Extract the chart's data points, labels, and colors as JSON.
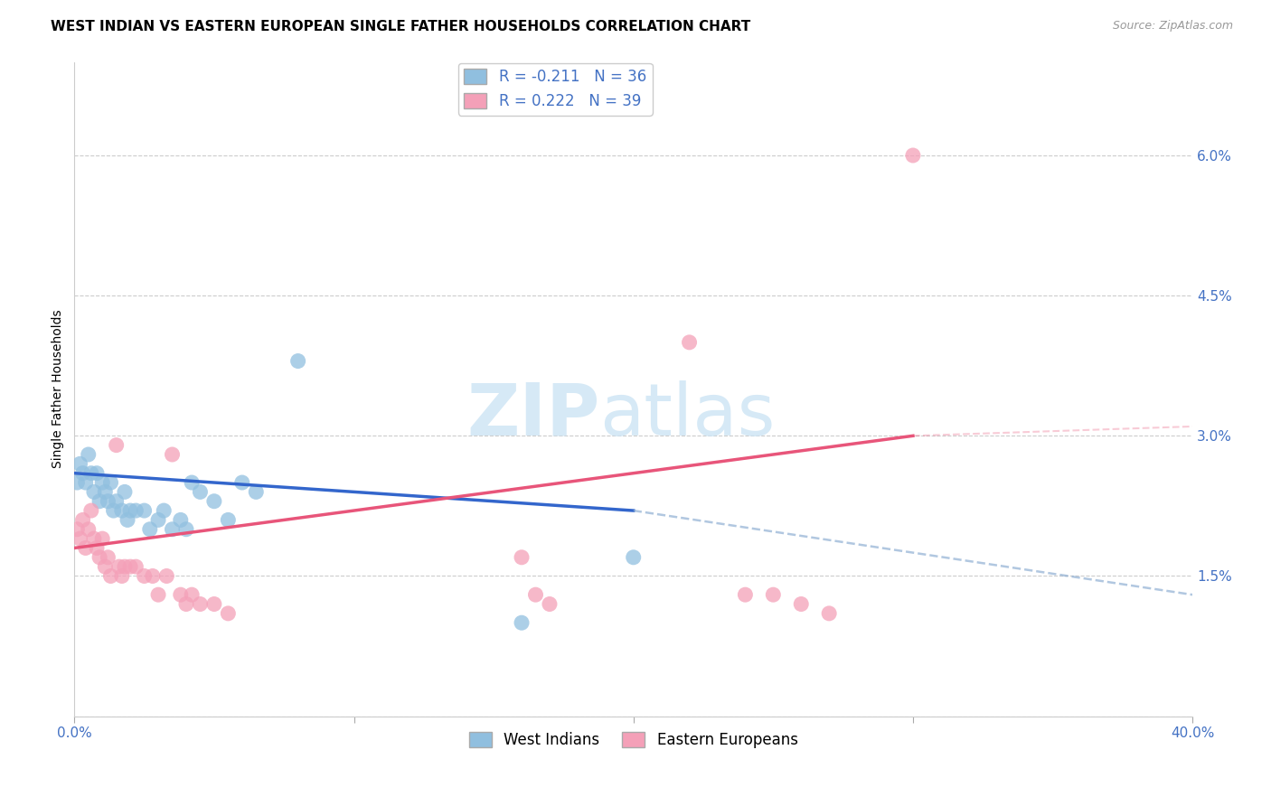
{
  "title": "WEST INDIAN VS EASTERN EUROPEAN SINGLE FATHER HOUSEHOLDS CORRELATION CHART",
  "source": "Source: ZipAtlas.com",
  "tick_color": "#4472c4",
  "ylabel": "Single Father Households",
  "xlim": [
    0.0,
    0.4
  ],
  "ylim": [
    0.0,
    0.07
  ],
  "x_ticks": [
    0.0,
    0.1,
    0.2,
    0.3,
    0.4
  ],
  "x_tick_labels": [
    "0.0%",
    "",
    "",
    "",
    "40.0%"
  ],
  "y_ticks": [
    0.0,
    0.015,
    0.03,
    0.045,
    0.06
  ],
  "y_tick_labels": [
    "",
    "1.5%",
    "3.0%",
    "4.5%",
    "6.0%"
  ],
  "blue_R": "-0.211",
  "blue_N": "36",
  "pink_R": "0.222",
  "pink_N": "39",
  "blue_color": "#90bfdf",
  "pink_color": "#f4a0b8",
  "blue_line_color": "#3366cc",
  "pink_line_color": "#e8557a",
  "blue_line_dash_color": "#88aad0",
  "watermark_zip": "ZIP",
  "watermark_atlas": "atlas",
  "legend_labels": [
    "West Indians",
    "Eastern Europeans"
  ],
  "blue_scatter_x": [
    0.001,
    0.002,
    0.003,
    0.004,
    0.005,
    0.006,
    0.007,
    0.008,
    0.009,
    0.01,
    0.011,
    0.012,
    0.013,
    0.014,
    0.015,
    0.017,
    0.018,
    0.019,
    0.02,
    0.022,
    0.025,
    0.027,
    0.03,
    0.032,
    0.035,
    0.038,
    0.04,
    0.042,
    0.045,
    0.05,
    0.055,
    0.06,
    0.065,
    0.08,
    0.16,
    0.2
  ],
  "blue_scatter_y": [
    0.025,
    0.027,
    0.026,
    0.025,
    0.028,
    0.026,
    0.024,
    0.026,
    0.023,
    0.025,
    0.024,
    0.023,
    0.025,
    0.022,
    0.023,
    0.022,
    0.024,
    0.021,
    0.022,
    0.022,
    0.022,
    0.02,
    0.021,
    0.022,
    0.02,
    0.021,
    0.02,
    0.025,
    0.024,
    0.023,
    0.021,
    0.025,
    0.024,
    0.038,
    0.01,
    0.017
  ],
  "pink_scatter_x": [
    0.001,
    0.002,
    0.003,
    0.004,
    0.005,
    0.006,
    0.007,
    0.008,
    0.009,
    0.01,
    0.011,
    0.012,
    0.013,
    0.015,
    0.016,
    0.017,
    0.018,
    0.02,
    0.022,
    0.025,
    0.028,
    0.03,
    0.033,
    0.035,
    0.038,
    0.04,
    0.042,
    0.045,
    0.05,
    0.055,
    0.16,
    0.165,
    0.17,
    0.22,
    0.24,
    0.25,
    0.26,
    0.27,
    0.3
  ],
  "pink_scatter_y": [
    0.02,
    0.019,
    0.021,
    0.018,
    0.02,
    0.022,
    0.019,
    0.018,
    0.017,
    0.019,
    0.016,
    0.017,
    0.015,
    0.029,
    0.016,
    0.015,
    0.016,
    0.016,
    0.016,
    0.015,
    0.015,
    0.013,
    0.015,
    0.028,
    0.013,
    0.012,
    0.013,
    0.012,
    0.012,
    0.011,
    0.017,
    0.013,
    0.012,
    0.04,
    0.013,
    0.013,
    0.012,
    0.011,
    0.06
  ],
  "blue_line_x0": 0.0,
  "blue_line_x_solid_end": 0.2,
  "blue_line_x_end": 0.4,
  "blue_line_y0": 0.026,
  "blue_line_y_solid_end": 0.022,
  "blue_line_y_end": 0.013,
  "pink_line_x0": 0.0,
  "pink_line_x_solid_end": 0.3,
  "pink_line_x_end": 0.4,
  "pink_line_y0": 0.018,
  "pink_line_y_solid_end": 0.03,
  "pink_line_y_end": 0.031,
  "bg_color": "#ffffff",
  "grid_color": "#cccccc",
  "title_fontsize": 11,
  "tick_fontsize": 11,
  "ylabel_fontsize": 10,
  "source_fontsize": 9
}
